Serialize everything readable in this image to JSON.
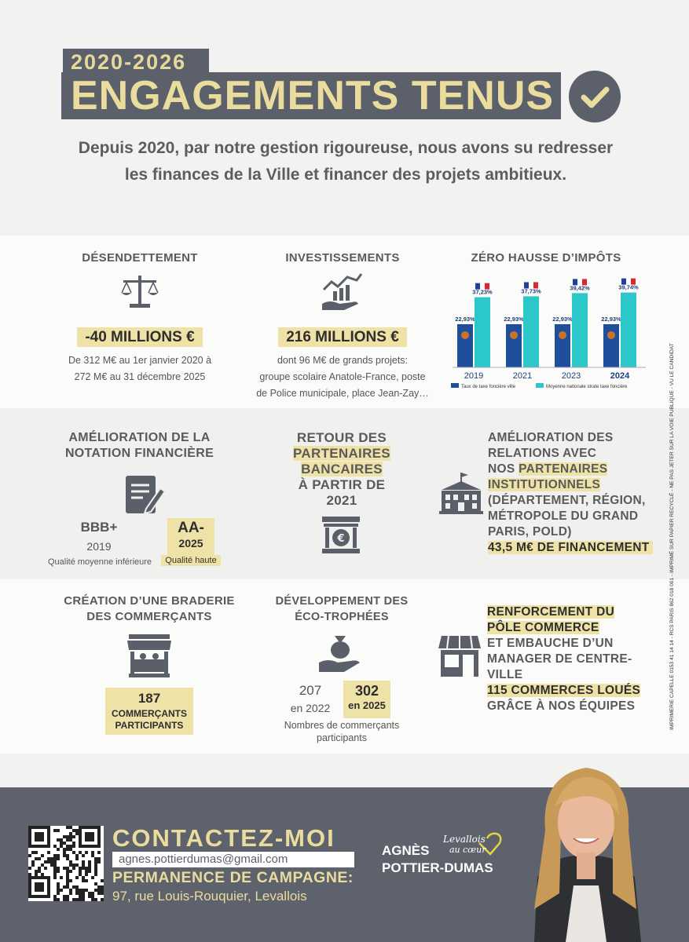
{
  "header": {
    "dates": "2020-2026",
    "title": "ENGAGEMENTS TENUS",
    "intro_line1": "Depuis 2020, par notre gestion rigoureuse, nous avons su redresser",
    "intro_line2": "les finances de la Ville et financer des projets ambitieux."
  },
  "row1": {
    "desendettement": {
      "title": "DÉSENDETTEMENT",
      "badge": "-40 MILLIONS €",
      "line1": "De 312 M€ au 1er janvier 2020 à",
      "line2": "272 M€ au 31 décembre 2025"
    },
    "investissements": {
      "title": "INVESTISSEMENTS",
      "badge": "216 MILLIONS €",
      "line1": "dont 96 M€ de grands projets:",
      "line2": "groupe scolaire Anatole-France, poste",
      "line3": "de Police municipale, place Jean-Zay…"
    },
    "impots_title": "ZÉRO HAUSSE D’IMPÔTS"
  },
  "chart_data": {
    "type": "bar",
    "title": "ZÉRO HAUSSE D’IMPÔTS",
    "categories": [
      "2019",
      "2021",
      "2023",
      "2024"
    ],
    "series": [
      {
        "name": "Taux de taxe foncière ville",
        "values": [
          22.93,
          22.93,
          22.93,
          22.93
        ],
        "labels": [
          "22,93%",
          "22,93%",
          "22,93%",
          "22,93%"
        ],
        "color": "#1f4f9a"
      },
      {
        "name": "Moyenne nationale strate taxe foncière",
        "values": [
          37.23,
          37.73,
          39.42,
          39.74
        ],
        "labels": [
          "37,23%",
          "37,73%",
          "39,42%",
          "39,74%"
        ],
        "color": "#2cc7c9"
      }
    ],
    "ylim": [
      0,
      45
    ],
    "legend": "bottom"
  },
  "row2": {
    "notation": {
      "title1": "AMÉLIORATION DE LA",
      "title2": "NOTATION FINANCIÈRE",
      "old_rating": "BBB+",
      "old_year": "2019",
      "old_label": "Qualité moyenne inférieure",
      "new_rating": "AA-",
      "new_year": "2025",
      "new_label": "Qualité haute"
    },
    "bancaires": {
      "l1": "RETOUR DES",
      "l2": "PARTENAIRES",
      "l3": "BANCAIRES",
      "l4": "À PARTIR DE",
      "l5": "2021"
    },
    "relations": {
      "l1": "AMÉLIORATION DES",
      "l2": "RELATIONS AVEC",
      "l3a": "NOS ",
      "l3b": "PARTENAIRES",
      "l4": "INSTITUTIONNELS",
      "l5": "(DÉPARTEMENT, RÉGION,",
      "l6": "MÉTROPOLE DU GRAND",
      "l7": "PARIS, POLD)",
      "l8": "43,5 M€ DE FINANCEMENT"
    }
  },
  "row3": {
    "braderie": {
      "title1": "CRÉATION D’UNE BRADERIE",
      "title2": "DES COMMERÇANTS",
      "count": "187",
      "label1": "COMMERÇANTS",
      "label2": "PARTICIPANTS"
    },
    "eco": {
      "title1": "DÉVELOPPEMENT DES",
      "title2": "ÉCO-TROPHÉES",
      "old_value": "207",
      "old_year": "en 2022",
      "new_value": "302",
      "new_year": "en 2025",
      "note1": "Nombres de commerçants",
      "note2": "participants"
    },
    "commerce": {
      "l1": "RENFORCEMENT DU",
      "l2": "PÔLE COMMERCE",
      "l3": "ET EMBAUCHE D’UN",
      "l4": "MANAGER DE CENTRE-",
      "l5": "VILLE",
      "l6": "115 COMMERCES LOUÉS",
      "l7": "GRÂCE À NOS ÉQUIPES"
    }
  },
  "side_text": "IMPRIMERIE CAPELLE 0153 41 14 14 - RCS PARIS 862 018 001 - IMPRIMÉ SUR PAPIER RECYCLÉ - NE PAS JETER SUR LA VOIE PUBLIQUE - VU LE CANDIDAT",
  "footer": {
    "contact_title": "CONTACTEZ-MOI",
    "email": "agnes.pottierdumas@gmail.com",
    "permanence_title": "PERMANENCE DE CAMPAGNE:",
    "address": "97, rue Louis-Rouquier, Levallois",
    "name1": "AGNÈS",
    "name2": "POTTIER-DUMAS",
    "logo_text1": "Levallois",
    "logo_text2": "au cœur"
  },
  "colors": {
    "dark": "#5b606b",
    "gold": "#eadc9d",
    "highlight": "#efe2a7",
    "teal": "#2cc7c9",
    "navy": "#1f4f9a"
  }
}
